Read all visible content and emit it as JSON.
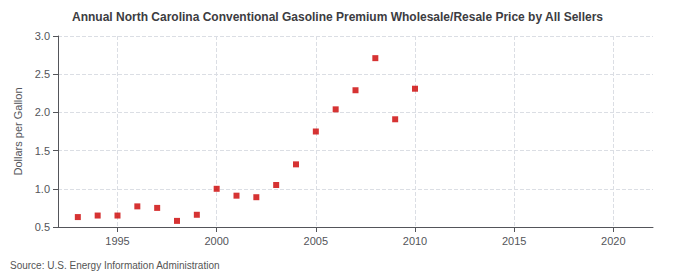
{
  "chart_data": {
    "type": "scatter",
    "title": "Annual North Carolina Conventional Gasoline Premium Wholesale/Resale Price by All Sellers",
    "ylabel": "Dollars per Gallon",
    "annotations": [
      "Source: U.S. Energy Information Administration"
    ],
    "x": [
      1993,
      1994,
      1995,
      1996,
      1997,
      1998,
      1999,
      2000,
      2001,
      2002,
      2003,
      2004,
      2005,
      2006,
      2007,
      2008,
      2009,
      2010
    ],
    "values": [
      0.63,
      0.65,
      0.65,
      0.77,
      0.75,
      0.58,
      0.66,
      1.0,
      0.91,
      0.89,
      1.05,
      1.32,
      1.75,
      2.04,
      2.29,
      2.71,
      1.91,
      2.31
    ],
    "color": "#cc0000",
    "marker": "square",
    "xlim": [
      1992,
      2022
    ],
    "xticks": [
      1995,
      2000,
      2005,
      2010,
      2015,
      2020
    ],
    "ylim": [
      0.5,
      3.0
    ],
    "yticks": [
      0.5,
      {
        "value": 1.0,
        "label": "1.0"
      },
      1.5,
      {
        "value": 2.0,
        "label": "2.0"
      },
      2.5,
      {
        "value": 3.0,
        "label": "3.0"
      }
    ],
    "grid": true
  }
}
